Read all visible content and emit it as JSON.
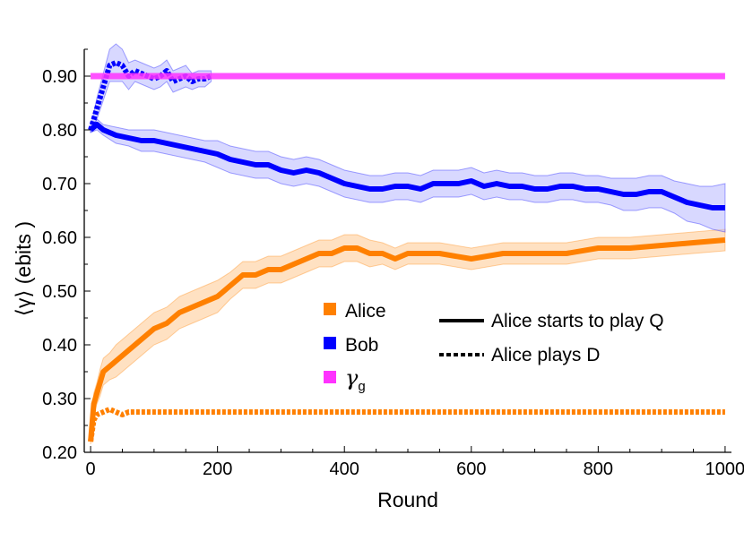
{
  "chart_data": {
    "type": "line",
    "title": "",
    "xlabel": "Round",
    "ylabel": "⟨γ⟩ (ebits )",
    "xlim": [
      -10,
      1010
    ],
    "ylim": [
      0.2,
      0.95
    ],
    "x_ticks": [
      0,
      200,
      400,
      600,
      800,
      1000
    ],
    "x_tick_labels": [
      "0",
      "200",
      "400",
      "600",
      "800",
      "1000"
    ],
    "y_ticks": [
      0.2,
      0.3,
      0.4,
      0.5,
      0.6,
      0.7,
      0.8,
      0.9
    ],
    "y_tick_labels": [
      "0.20",
      "0.30",
      "0.40",
      "0.50",
      "0.60",
      "0.70",
      "0.80",
      "0.90"
    ],
    "grid": false,
    "legend_players": [
      {
        "label": "Alice",
        "color": "#ff8000"
      },
      {
        "label": "Bob",
        "color": "#0000ff"
      },
      {
        "label": "γ",
        "subscript": "g",
        "color": "#ff33ff"
      }
    ],
    "legend_styles": [
      {
        "label": "Alice starts to play Q",
        "dash": "solid"
      },
      {
        "label": "Alice plays D",
        "dash": "dotted"
      }
    ],
    "series": [
      {
        "player": "Alice",
        "style": "solid",
        "color": "#ff8000",
        "band_color": "#ffc890",
        "x": [
          0,
          5,
          10,
          15,
          20,
          30,
          40,
          50,
          60,
          70,
          80,
          90,
          100,
          120,
          140,
          160,
          180,
          200,
          220,
          240,
          260,
          280,
          300,
          320,
          340,
          360,
          380,
          400,
          420,
          440,
          460,
          480,
          500,
          550,
          600,
          650,
          700,
          750,
          800,
          850,
          900,
          950,
          1000
        ],
        "y": [
          0.22,
          0.29,
          0.31,
          0.33,
          0.35,
          0.36,
          0.37,
          0.38,
          0.39,
          0.4,
          0.41,
          0.42,
          0.43,
          0.44,
          0.46,
          0.47,
          0.48,
          0.49,
          0.51,
          0.53,
          0.53,
          0.54,
          0.54,
          0.55,
          0.56,
          0.57,
          0.57,
          0.58,
          0.58,
          0.57,
          0.57,
          0.56,
          0.57,
          0.57,
          0.56,
          0.57,
          0.57,
          0.57,
          0.58,
          0.58,
          0.585,
          0.59,
          0.595
        ],
        "err": [
          0.005,
          0.02,
          0.02,
          0.025,
          0.025,
          0.025,
          0.03,
          0.03,
          0.03,
          0.03,
          0.03,
          0.03,
          0.03,
          0.03,
          0.03,
          0.03,
          0.03,
          0.03,
          0.025,
          0.025,
          0.025,
          0.025,
          0.025,
          0.025,
          0.025,
          0.025,
          0.025,
          0.025,
          0.025,
          0.025,
          0.02,
          0.02,
          0.02,
          0.02,
          0.02,
          0.02,
          0.02,
          0.02,
          0.02,
          0.02,
          0.02,
          0.02,
          0.02
        ]
      },
      {
        "player": "Alice",
        "style": "dotted",
        "color": "#ff8000",
        "x": [
          0,
          5,
          10,
          20,
          30,
          40,
          50,
          60,
          80,
          100,
          200,
          400,
          600,
          800,
          1000
        ],
        "y": [
          0.22,
          0.26,
          0.27,
          0.275,
          0.28,
          0.275,
          0.27,
          0.275,
          0.275,
          0.275,
          0.275,
          0.275,
          0.275,
          0.275,
          0.275
        ]
      },
      {
        "player": "Bob",
        "style": "solid",
        "color": "#0000ff",
        "band_color": "#b8b8ff",
        "x": [
          0,
          10,
          20,
          40,
          60,
          80,
          100,
          120,
          140,
          160,
          180,
          200,
          220,
          240,
          260,
          280,
          300,
          320,
          340,
          360,
          380,
          400,
          420,
          440,
          460,
          480,
          500,
          520,
          540,
          560,
          580,
          600,
          620,
          640,
          660,
          680,
          700,
          720,
          740,
          760,
          780,
          800,
          820,
          840,
          860,
          880,
          900,
          920,
          940,
          960,
          980,
          1000
        ],
        "y": [
          0.8,
          0.81,
          0.8,
          0.79,
          0.785,
          0.78,
          0.78,
          0.775,
          0.77,
          0.765,
          0.76,
          0.755,
          0.745,
          0.74,
          0.735,
          0.735,
          0.725,
          0.72,
          0.725,
          0.72,
          0.71,
          0.7,
          0.695,
          0.69,
          0.69,
          0.695,
          0.695,
          0.69,
          0.7,
          0.7,
          0.7,
          0.705,
          0.695,
          0.7,
          0.695,
          0.695,
          0.69,
          0.69,
          0.695,
          0.695,
          0.69,
          0.69,
          0.685,
          0.68,
          0.68,
          0.685,
          0.685,
          0.675,
          0.665,
          0.66,
          0.655,
          0.655
        ],
        "err": [
          0.005,
          0.01,
          0.01,
          0.015,
          0.015,
          0.02,
          0.02,
          0.02,
          0.02,
          0.02,
          0.02,
          0.025,
          0.025,
          0.025,
          0.025,
          0.025,
          0.025,
          0.025,
          0.025,
          0.025,
          0.025,
          0.025,
          0.025,
          0.025,
          0.025,
          0.025,
          0.025,
          0.025,
          0.025,
          0.025,
          0.025,
          0.025,
          0.025,
          0.025,
          0.025,
          0.025,
          0.025,
          0.025,
          0.025,
          0.025,
          0.025,
          0.025,
          0.025,
          0.03,
          0.03,
          0.03,
          0.03,
          0.03,
          0.035,
          0.035,
          0.04,
          0.045
        ]
      },
      {
        "player": "Bob",
        "style": "dotted",
        "color": "#0000ff",
        "band_color": "#b8b8ff",
        "x": [
          0,
          10,
          20,
          30,
          40,
          50,
          60,
          70,
          80,
          90,
          100,
          110,
          120,
          130,
          140,
          150,
          160,
          170,
          180,
          190
        ],
        "y": [
          0.8,
          0.84,
          0.88,
          0.92,
          0.925,
          0.92,
          0.9,
          0.91,
          0.905,
          0.9,
          0.895,
          0.9,
          0.91,
          0.89,
          0.895,
          0.9,
          0.89,
          0.895,
          0.895,
          0.9
        ],
        "err": [
          0.005,
          0.02,
          0.025,
          0.03,
          0.035,
          0.03,
          0.025,
          0.02,
          0.02,
          0.02,
          0.02,
          0.02,
          0.02,
          0.02,
          0.02,
          0.02,
          0.015,
          0.015,
          0.015,
          0.01
        ]
      },
      {
        "player": "γg",
        "style": "solid",
        "color": "#ff33ff",
        "x": [
          0,
          1000
        ],
        "y": [
          0.9,
          0.9
        ]
      }
    ]
  }
}
